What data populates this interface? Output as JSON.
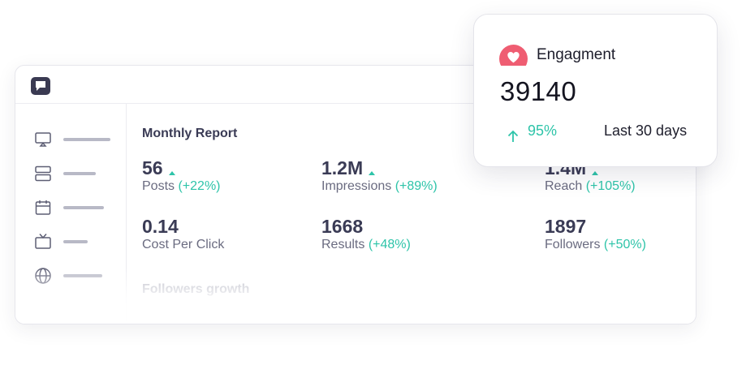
{
  "report": {
    "title": "Monthly Report",
    "metrics": [
      {
        "value": "56",
        "label": "Posts",
        "change": "(+22%)",
        "trend": "up"
      },
      {
        "value": "1.2M",
        "label": "Impressions",
        "change": "(+89%)",
        "trend": "up"
      },
      {
        "value": "1.4M",
        "label": "Reach",
        "change": "(+105%)",
        "trend": "up"
      },
      {
        "value": "0.14",
        "label": "Cost Per Click",
        "change": "",
        "trend": "none"
      },
      {
        "value": "1668",
        "label": "Results",
        "change": "(+48%)",
        "trend": "none"
      },
      {
        "value": "1897",
        "label": "Followers",
        "change": "(+50%)",
        "trend": "none"
      }
    ],
    "section_title": "Followers growth"
  },
  "sidebar": {
    "items": [
      {
        "icon": "screen-cast-icon"
      },
      {
        "icon": "stack-icon"
      },
      {
        "icon": "calendar-icon"
      },
      {
        "icon": "tv-icon"
      },
      {
        "icon": "globe-icon"
      }
    ]
  },
  "engagement_card": {
    "title": "Engagment",
    "value": "39140",
    "change": "95%",
    "period": "Last 30 days",
    "icon": "heart-icon"
  },
  "colors": {
    "accent_green": "#2ec4a9",
    "heart_red": "#ef5d72",
    "text_dark": "#3a3b55",
    "text_muted": "#6a6b80"
  }
}
